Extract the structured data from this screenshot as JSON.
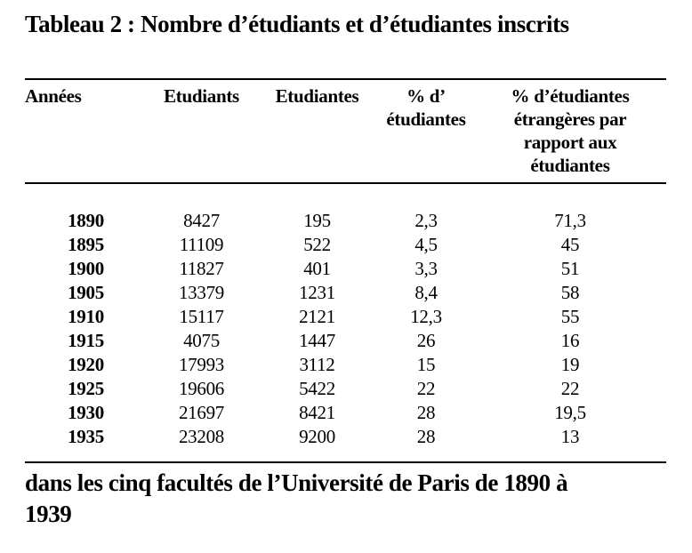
{
  "page": {
    "title": "Tableau 2 : Nombre d’étudiants et d’étudiantes inscrits",
    "caption": "dans les cinq facultés de l’Université de Paris de 1890 à\n1939"
  },
  "table": {
    "headers": [
      "Années",
      "Etudiants",
      "Etudiantes",
      "% d’\nétudiantes",
      "% d’étudiantes\nétrangères par\nrapport aux\nétudiantes"
    ],
    "rows": [
      [
        "1890",
        "8427",
        "195",
        "2,3",
        "71,3"
      ],
      [
        "1895",
        "11109",
        "522",
        "4,5",
        "45"
      ],
      [
        "1900",
        "11827",
        "401",
        "3,3",
        "51"
      ],
      [
        "1905",
        "13379",
        "1231",
        "8,4",
        "58"
      ],
      [
        "1910",
        "15117",
        "2121",
        "12,3",
        "55"
      ],
      [
        "1915",
        "4075",
        "1447",
        "26",
        "16"
      ],
      [
        "1920",
        "17993",
        "3112",
        "15",
        "19"
      ],
      [
        "1925",
        "19606",
        "5422",
        "22",
        "22"
      ],
      [
        "1930",
        "21697",
        "8421",
        "28",
        "19,5"
      ],
      [
        "1935",
        "23208",
        "9200",
        "28",
        "13"
      ]
    ]
  },
  "chart_data": {
    "type": "table",
    "title": "Tableau 2 : Nombre d’étudiants et d’étudiantes inscrits",
    "caption": "dans les cinq facultés de l’Université de Paris de 1890 à 1939",
    "columns": [
      "Années",
      "Etudiants",
      "Etudiantes",
      "% d’étudiantes",
      "% d’étudiantes étrangères par rapport aux étudiantes"
    ],
    "rows": [
      [
        1890,
        8427,
        195,
        2.3,
        71.3
      ],
      [
        1895,
        11109,
        522,
        4.5,
        45
      ],
      [
        1900,
        11827,
        401,
        3.3,
        51
      ],
      [
        1905,
        13379,
        1231,
        8.4,
        58
      ],
      [
        1910,
        15117,
        2121,
        12.3,
        55
      ],
      [
        1915,
        4075,
        1447,
        26,
        16
      ],
      [
        1920,
        17993,
        3112,
        15,
        19
      ],
      [
        1925,
        19606,
        5422,
        22,
        22
      ],
      [
        1930,
        21697,
        8421,
        28,
        19.5
      ],
      [
        1935,
        23208,
        9200,
        28,
        13
      ]
    ],
    "text_color": "#000000",
    "background_color": "#ffffff"
  }
}
